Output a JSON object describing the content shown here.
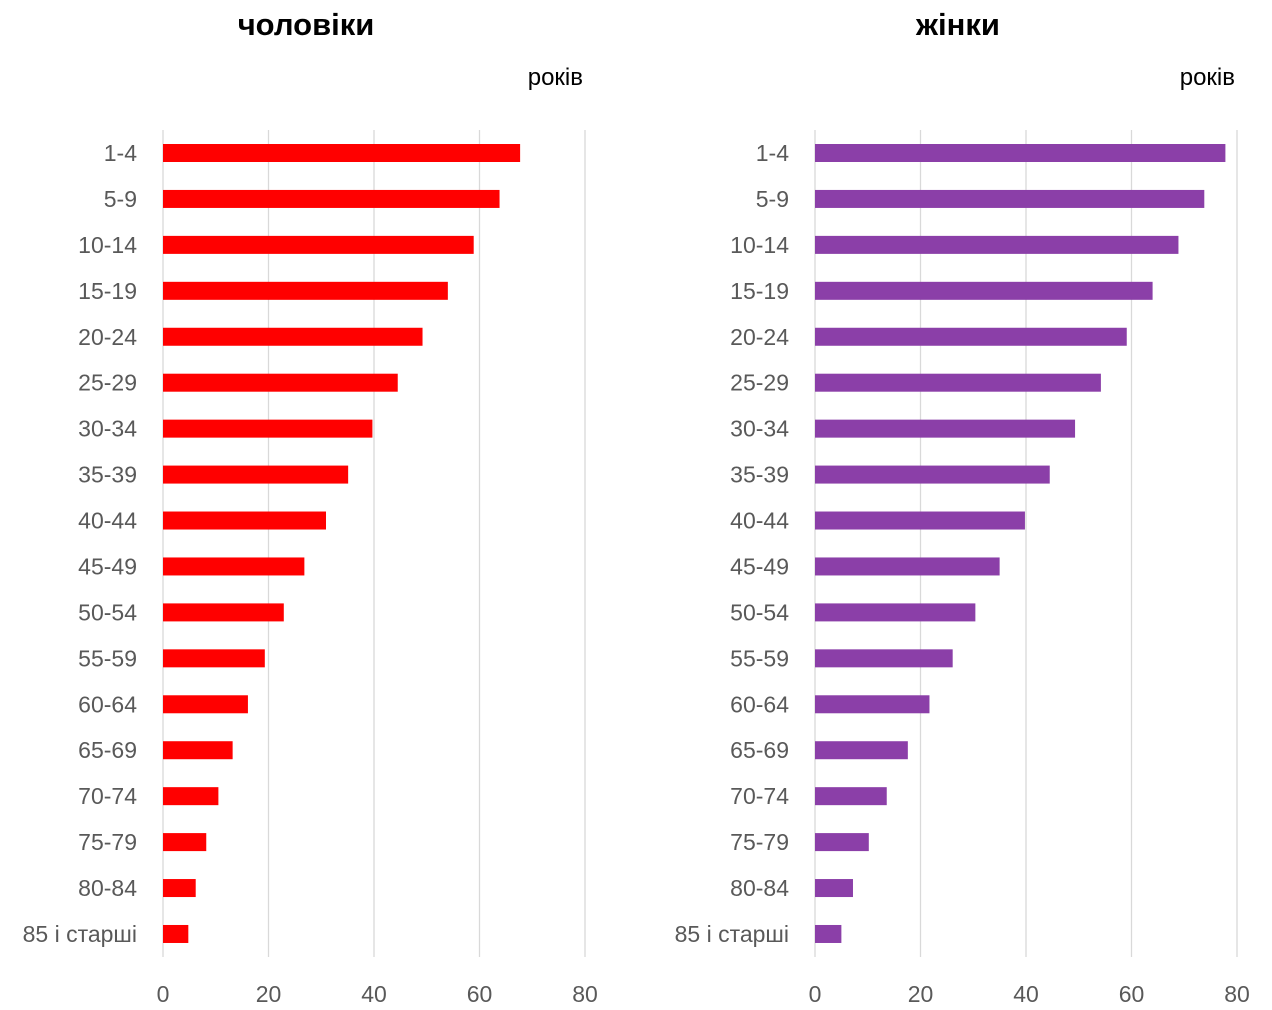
{
  "chart_data": [
    {
      "type": "bar",
      "orientation": "horizontal",
      "title": "чоловіки",
      "unit_label": "років",
      "categories": [
        "1-4",
        "5-9",
        "10-14",
        "15-19",
        "20-24",
        "25-29",
        "30-34",
        "35-39",
        "40-44",
        "45-49",
        "50-54",
        "55-59",
        "60-64",
        "65-69",
        "70-74",
        "75-79",
        "80-84",
        "85 і старші"
      ],
      "values": [
        67.7,
        63.8,
        58.9,
        54.0,
        49.2,
        44.5,
        39.7,
        35.1,
        30.9,
        26.8,
        22.9,
        19.3,
        16.1,
        13.2,
        10.5,
        8.2,
        6.2,
        4.8
      ],
      "xlim": [
        0,
        80
      ],
      "xticks": [
        "0",
        "20",
        "40",
        "60",
        "80"
      ],
      "bar_color": "#ff0000",
      "grid": true
    },
    {
      "type": "bar",
      "orientation": "horizontal",
      "title": "жінки",
      "unit_label": "років",
      "categories": [
        "1-4",
        "5-9",
        "10-14",
        "15-19",
        "20-24",
        "25-29",
        "30-34",
        "35-39",
        "40-44",
        "45-49",
        "50-54",
        "55-59",
        "60-64",
        "65-69",
        "70-74",
        "75-79",
        "80-84",
        "85 і старші"
      ],
      "values": [
        77.8,
        73.8,
        68.9,
        64.0,
        59.1,
        54.2,
        49.3,
        44.5,
        39.8,
        35.0,
        30.4,
        26.1,
        21.7,
        17.6,
        13.6,
        10.2,
        7.2,
        5.0
      ],
      "xlim": [
        0,
        80
      ],
      "xticks": [
        "0",
        "20",
        "40",
        "60",
        "80"
      ],
      "bar_color": "#8b3fa8",
      "grid": true
    }
  ]
}
